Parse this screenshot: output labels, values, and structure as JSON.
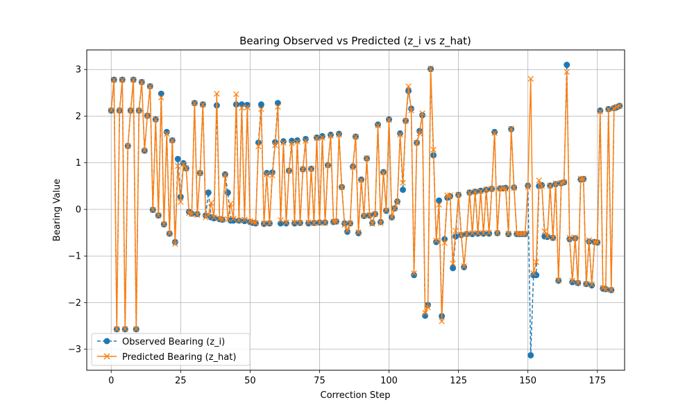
{
  "chart_data": {
    "type": "line",
    "title": "Bearing Observed vs Predicted (z_i vs z_hat)",
    "xlabel": "Correction Step",
    "ylabel": "Bearing Value",
    "xlim": [
      -8.8,
      184.8
    ],
    "ylim": [
      -3.45,
      3.42
    ],
    "xticks": [
      0,
      25,
      50,
      75,
      100,
      125,
      150,
      175
    ],
    "yticks": [
      -3,
      -2,
      -1,
      0,
      1,
      2,
      3
    ],
    "grid": true,
    "legend_position": "lower-left",
    "series": [
      {
        "name": "Observed Bearing (z_i)",
        "color": "#1f77b4",
        "linestyle": "dashed",
        "marker": "circle",
        "values": [
          2.12,
          2.78,
          -2.57,
          2.12,
          2.78,
          -2.57,
          1.36,
          2.12,
          2.78,
          -2.57,
          2.12,
          2.73,
          1.26,
          2.01,
          2.64,
          -0.01,
          1.93,
          -0.13,
          2.48,
          -0.32,
          1.66,
          -0.52,
          1.48,
          -0.7,
          1.08,
          0.27,
          0.99,
          0.88,
          -0.05,
          -0.09,
          2.28,
          -0.1,
          0.78,
          2.25,
          -0.13,
          0.36,
          -0.17,
          -0.19,
          2.23,
          -0.21,
          -0.22,
          0.75,
          0.36,
          -0.24,
          -0.24,
          2.25,
          -0.24,
          2.25,
          -0.25,
          2.24,
          -0.27,
          -0.29,
          -0.3,
          1.43,
          2.25,
          -0.31,
          0.78,
          -0.3,
          0.79,
          1.44,
          2.28,
          -0.3,
          1.46,
          -0.3,
          0.83,
          1.47,
          -0.3,
          1.48,
          -0.29,
          0.86,
          1.51,
          -0.3,
          0.87,
          -0.29,
          1.54,
          -0.28,
          1.57,
          -0.28,
          0.95,
          1.6,
          -0.27,
          -0.26,
          1.62,
          0.48,
          -0.3,
          -0.48,
          -0.3,
          0.92,
          1.56,
          -0.51,
          0.64,
          -0.14,
          1.09,
          -0.13,
          -0.29,
          -0.1,
          1.82,
          -0.27,
          0.8,
          -0.03,
          1.93,
          -0.17,
          0.02,
          0.17,
          1.63,
          0.42,
          1.9,
          2.54,
          2.16,
          -1.41,
          1.43,
          1.68,
          2.02,
          -2.28,
          -2.05,
          3.01,
          1.16,
          -0.7,
          0.19,
          -2.29,
          -0.64,
          0.25,
          0.28,
          -1.26,
          -0.58,
          0.31,
          -0.55,
          -1.24,
          -0.53,
          0.36,
          -0.53,
          0.38,
          -0.52,
          0.4,
          -0.52,
          0.42,
          -0.52,
          0.44,
          1.66,
          -0.51,
          0.45,
          0.45,
          0.46,
          -0.53,
          1.72,
          0.47,
          -0.53,
          -0.53,
          -0.53,
          -0.53,
          0.51,
          -3.13,
          -1.41,
          -1.41,
          0.5,
          0.52,
          -0.58,
          -0.59,
          0.51,
          -0.61,
          0.54,
          -1.53,
          0.56,
          0.58,
          3.1,
          -0.64,
          -1.56,
          -0.62,
          -1.58,
          0.64,
          0.65,
          -1.6,
          -0.69,
          -1.63,
          -0.7,
          -0.71,
          2.12,
          -1.7,
          -1.71,
          2.15,
          -1.73,
          2.17,
          2.19,
          2.22
        ]
      },
      {
        "name": "Predicted Bearing (z_hat)",
        "color": "#ff7f0e",
        "linestyle": "solid",
        "marker": "x",
        "values": [
          2.12,
          2.78,
          -2.57,
          2.12,
          2.78,
          -2.57,
          1.36,
          2.12,
          2.78,
          -2.57,
          2.12,
          2.73,
          1.26,
          2.01,
          2.64,
          -0.01,
          1.93,
          -0.13,
          2.4,
          -0.32,
          1.62,
          -0.52,
          1.48,
          -0.74,
          0.93,
          0.16,
          0.97,
          0.88,
          -0.08,
          -0.1,
          2.28,
          -0.12,
          0.78,
          2.25,
          -0.17,
          -0.12,
          0.14,
          -0.17,
          2.48,
          -0.2,
          -0.22,
          0.74,
          -0.21,
          0.12,
          -0.2,
          2.47,
          -0.24,
          2.18,
          -0.22,
          2.19,
          -0.25,
          -0.27,
          -0.29,
          1.35,
          2.15,
          -0.3,
          0.75,
          -0.3,
          0.73,
          1.38,
          2.2,
          -0.23,
          1.43,
          -0.28,
          0.83,
          1.42,
          -0.28,
          1.45,
          -0.29,
          0.86,
          1.47,
          -0.28,
          0.87,
          -0.3,
          1.53,
          -0.29,
          1.54,
          -0.29,
          0.94,
          1.58,
          -0.26,
          -0.26,
          1.6,
          0.47,
          -0.33,
          -0.45,
          -0.3,
          0.9,
          1.56,
          -0.49,
          0.63,
          -0.14,
          1.1,
          -0.12,
          -0.31,
          -0.1,
          1.8,
          -0.29,
          0.79,
          -0.02,
          1.92,
          -0.17,
          0.02,
          0.15,
          1.6,
          0.57,
          1.9,
          2.64,
          2.12,
          -1.37,
          1.43,
          1.63,
          2.06,
          -2.22,
          -2.1,
          3.02,
          1.28,
          -0.67,
          0.1,
          -2.4,
          -0.72,
          0.3,
          0.3,
          -1.16,
          -0.46,
          0.32,
          -0.54,
          -1.22,
          -0.53,
          0.36,
          -0.51,
          0.38,
          -0.51,
          0.39,
          -0.51,
          0.43,
          -0.5,
          0.44,
          1.64,
          -0.51,
          0.44,
          0.45,
          0.44,
          -0.52,
          1.73,
          0.46,
          -0.52,
          -0.52,
          -0.52,
          -0.52,
          0.48,
          2.8,
          -1.37,
          -1.13,
          0.62,
          0.5,
          -0.47,
          -0.58,
          0.51,
          -0.61,
          0.56,
          -1.52,
          0.57,
          0.58,
          2.95,
          -0.61,
          -1.53,
          -0.6,
          -1.58,
          0.66,
          0.66,
          -1.6,
          -0.66,
          -1.61,
          -0.69,
          -0.71,
          2.1,
          -1.68,
          -1.72,
          2.15,
          -1.73,
          2.17,
          2.2,
          2.22
        ]
      }
    ]
  }
}
